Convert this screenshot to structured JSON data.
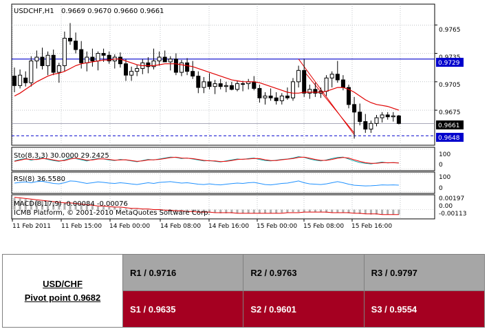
{
  "chart_data": [
    {
      "type": "candlestick",
      "title": "USDCHF,H1",
      "ohlc_label": "0.9669 0.9670 0.9660 0.9661",
      "watermark": "ICMB Platform, © 2001-2010 MetaQuotes Software Corp.",
      "ylim": [
        0.9638,
        0.9787
      ],
      "y_ticks": [
        "0.9765",
        "0.9735",
        "0.9705",
        "0.9675"
      ],
      "price_labels": {
        "upper": "0.9729",
        "current": "0.9661",
        "lower": "0.9648"
      },
      "time_labels": [
        "11 Feb 2011",
        "11 Feb 15:00",
        "14 Feb 00:00",
        "14 Feb 08:00",
        "14 Feb 16:00",
        "15 Feb 00:00",
        "15 Feb 08:00",
        "15 Feb 16:00"
      ],
      "candles": [
        {
          "o": 0.9711,
          "h": 0.972,
          "l": 0.9694,
          "c": 0.9701
        },
        {
          "o": 0.9701,
          "h": 0.9718,
          "l": 0.9698,
          "c": 0.9712
        },
        {
          "o": 0.9709,
          "h": 0.9716,
          "l": 0.97,
          "c": 0.9704
        },
        {
          "o": 0.9704,
          "h": 0.9732,
          "l": 0.97,
          "c": 0.9727
        },
        {
          "o": 0.9727,
          "h": 0.9738,
          "l": 0.9719,
          "c": 0.9731
        },
        {
          "o": 0.9731,
          "h": 0.9741,
          "l": 0.9718,
          "c": 0.9722
        },
        {
          "o": 0.9722,
          "h": 0.9737,
          "l": 0.9712,
          "c": 0.9733
        },
        {
          "o": 0.9733,
          "h": 0.9739,
          "l": 0.9712,
          "c": 0.9715
        },
        {
          "o": 0.9715,
          "h": 0.9725,
          "l": 0.9704,
          "c": 0.9722
        },
        {
          "o": 0.9722,
          "h": 0.9758,
          "l": 0.9716,
          "c": 0.9751
        },
        {
          "o": 0.9751,
          "h": 0.9767,
          "l": 0.9744,
          "c": 0.9748
        },
        {
          "o": 0.9748,
          "h": 0.9757,
          "l": 0.9735,
          "c": 0.9739
        },
        {
          "o": 0.9739,
          "h": 0.9748,
          "l": 0.9719,
          "c": 0.9725
        },
        {
          "o": 0.9725,
          "h": 0.9737,
          "l": 0.9716,
          "c": 0.9731
        },
        {
          "o": 0.9731,
          "h": 0.974,
          "l": 0.9721,
          "c": 0.9727
        },
        {
          "o": 0.9727,
          "h": 0.9737,
          "l": 0.9717,
          "c": 0.9735
        },
        {
          "o": 0.9735,
          "h": 0.974,
          "l": 0.9726,
          "c": 0.9733
        },
        {
          "o": 0.9733,
          "h": 0.9737,
          "l": 0.9724,
          "c": 0.9727
        },
        {
          "o": 0.9727,
          "h": 0.9734,
          "l": 0.9719,
          "c": 0.9731
        },
        {
          "o": 0.9731,
          "h": 0.9736,
          "l": 0.972,
          "c": 0.9724
        },
        {
          "o": 0.9724,
          "h": 0.9729,
          "l": 0.9706,
          "c": 0.9712
        },
        {
          "o": 0.9712,
          "h": 0.9721,
          "l": 0.9706,
          "c": 0.9716
        },
        {
          "o": 0.9716,
          "h": 0.9723,
          "l": 0.9711,
          "c": 0.9719
        },
        {
          "o": 0.9719,
          "h": 0.9729,
          "l": 0.9713,
          "c": 0.9725
        },
        {
          "o": 0.9725,
          "h": 0.9731,
          "l": 0.9714,
          "c": 0.9721
        },
        {
          "o": 0.9721,
          "h": 0.974,
          "l": 0.9718,
          "c": 0.9727
        },
        {
          "o": 0.9727,
          "h": 0.9737,
          "l": 0.9722,
          "c": 0.9731
        },
        {
          "o": 0.9731,
          "h": 0.9738,
          "l": 0.9726,
          "c": 0.9726
        },
        {
          "o": 0.9726,
          "h": 0.9732,
          "l": 0.9717,
          "c": 0.9729
        },
        {
          "o": 0.9729,
          "h": 0.9735,
          "l": 0.9712,
          "c": 0.9715
        },
        {
          "o": 0.9715,
          "h": 0.9728,
          "l": 0.9711,
          "c": 0.9725
        },
        {
          "o": 0.9725,
          "h": 0.973,
          "l": 0.9712,
          "c": 0.9716
        },
        {
          "o": 0.9716,
          "h": 0.9727,
          "l": 0.9708,
          "c": 0.9711
        },
        {
          "o": 0.9711,
          "h": 0.9716,
          "l": 0.9693,
          "c": 0.9699
        },
        {
          "o": 0.9699,
          "h": 0.971,
          "l": 0.9693,
          "c": 0.9705
        },
        {
          "o": 0.9705,
          "h": 0.9714,
          "l": 0.9697,
          "c": 0.97
        },
        {
          "o": 0.97,
          "h": 0.9707,
          "l": 0.9692,
          "c": 0.9703
        },
        {
          "o": 0.9703,
          "h": 0.9708,
          "l": 0.9697,
          "c": 0.97
        },
        {
          "o": 0.97,
          "h": 0.9705,
          "l": 0.9694,
          "c": 0.9701
        },
        {
          "o": 0.9701,
          "h": 0.9705,
          "l": 0.9696,
          "c": 0.9697
        },
        {
          "o": 0.9697,
          "h": 0.9706,
          "l": 0.9695,
          "c": 0.9703
        },
        {
          "o": 0.9703,
          "h": 0.9706,
          "l": 0.9695,
          "c": 0.9703
        },
        {
          "o": 0.9703,
          "h": 0.9708,
          "l": 0.9697,
          "c": 0.9705
        },
        {
          "o": 0.9705,
          "h": 0.9711,
          "l": 0.9696,
          "c": 0.9698
        },
        {
          "o": 0.9698,
          "h": 0.9702,
          "l": 0.9683,
          "c": 0.9688
        },
        {
          "o": 0.9688,
          "h": 0.9694,
          "l": 0.9681,
          "c": 0.969
        },
        {
          "o": 0.969,
          "h": 0.9698,
          "l": 0.9685,
          "c": 0.9688
        },
        {
          "o": 0.9688,
          "h": 0.9694,
          "l": 0.9681,
          "c": 0.9685
        },
        {
          "o": 0.9685,
          "h": 0.9693,
          "l": 0.9681,
          "c": 0.969
        },
        {
          "o": 0.969,
          "h": 0.9699,
          "l": 0.9686,
          "c": 0.9688
        },
        {
          "o": 0.9688,
          "h": 0.9709,
          "l": 0.9685,
          "c": 0.9705
        },
        {
          "o": 0.9705,
          "h": 0.9722,
          "l": 0.9699,
          "c": 0.9717
        },
        {
          "o": 0.9717,
          "h": 0.9729,
          "l": 0.9689,
          "c": 0.9693
        },
        {
          "o": 0.9693,
          "h": 0.9702,
          "l": 0.9687,
          "c": 0.9697
        },
        {
          "o": 0.9697,
          "h": 0.9704,
          "l": 0.9689,
          "c": 0.9693
        },
        {
          "o": 0.9693,
          "h": 0.9699,
          "l": 0.9688,
          "c": 0.9695
        },
        {
          "o": 0.9695,
          "h": 0.9712,
          "l": 0.969,
          "c": 0.9709
        },
        {
          "o": 0.9709,
          "h": 0.9716,
          "l": 0.9699,
          "c": 0.9713
        },
        {
          "o": 0.9713,
          "h": 0.9727,
          "l": 0.9704,
          "c": 0.9707
        },
        {
          "o": 0.9707,
          "h": 0.9712,
          "l": 0.9696,
          "c": 0.9699
        },
        {
          "o": 0.9699,
          "h": 0.9702,
          "l": 0.9677,
          "c": 0.9681
        },
        {
          "o": 0.9681,
          "h": 0.9689,
          "l": 0.9645,
          "c": 0.9673
        },
        {
          "o": 0.9673,
          "h": 0.9682,
          "l": 0.9659,
          "c": 0.9663
        },
        {
          "o": 0.9663,
          "h": 0.9671,
          "l": 0.9651,
          "c": 0.9655
        },
        {
          "o": 0.9655,
          "h": 0.9664,
          "l": 0.9651,
          "c": 0.9661
        },
        {
          "o": 0.9661,
          "h": 0.967,
          "l": 0.9658,
          "c": 0.9667
        },
        {
          "o": 0.9667,
          "h": 0.9673,
          "l": 0.9662,
          "c": 0.967
        },
        {
          "o": 0.967,
          "h": 0.9673,
          "l": 0.9665,
          "c": 0.9668
        },
        {
          "o": 0.9668,
          "h": 0.9673,
          "l": 0.9663,
          "c": 0.9669
        },
        {
          "o": 0.9669,
          "h": 0.967,
          "l": 0.966,
          "c": 0.9661
        }
      ],
      "moving_average": [
        0.969,
        0.9693,
        0.9697,
        0.9701,
        0.9705,
        0.9708,
        0.9711,
        0.9713,
        0.9714,
        0.9716,
        0.9719,
        0.9722,
        0.9724,
        0.9725,
        0.9726,
        0.9727,
        0.9728,
        0.9728,
        0.9729,
        0.9729,
        0.9727,
        0.9725,
        0.9723,
        0.9722,
        0.9722,
        0.9722,
        0.9723,
        0.9724,
        0.9724,
        0.9724,
        0.9723,
        0.9722,
        0.9721,
        0.9719,
        0.9717,
        0.9715,
        0.9713,
        0.9711,
        0.9709,
        0.9707,
        0.9706,
        0.9705,
        0.9705,
        0.9705,
        0.9704,
        0.9702,
        0.97,
        0.9698,
        0.9696,
        0.9694,
        0.9693,
        0.9693,
        0.9694,
        0.9694,
        0.9694,
        0.9694,
        0.9695,
        0.9697,
        0.9699,
        0.9699,
        0.9697,
        0.9694,
        0.969,
        0.9686,
        0.9683,
        0.9681,
        0.968,
        0.9679,
        0.9677,
        0.9675
      ],
      "levels": {
        "upper": 0.9729,
        "current": 0.9661,
        "lower": 0.9648
      },
      "trendlines": [
        {
          "from": [
            51,
            0.9729
          ],
          "to": [
            61,
            0.9649
          ]
        },
        {
          "from": [
            52,
            0.9716
          ],
          "to": [
            61,
            0.9651
          ]
        }
      ]
    },
    {
      "type": "line",
      "label": "Sto(8,3,3) 30.0000 29.2425",
      "ylim": [
        -10,
        110
      ],
      "y_ticks": [
        "100",
        "0"
      ],
      "series": [
        {
          "color": "#00a0a0",
          "values": [
            40,
            48,
            52,
            44,
            50,
            55,
            48,
            42,
            38,
            45,
            55,
            52,
            46,
            40,
            48,
            52,
            50,
            45,
            42,
            48,
            45,
            40,
            36,
            42,
            48,
            45,
            50,
            55,
            60,
            58,
            52,
            55,
            50,
            45,
            40,
            42,
            38,
            35,
            40,
            45,
            50,
            48,
            52,
            55,
            48,
            42,
            40,
            44,
            48,
            50,
            55,
            62,
            58,
            50,
            44,
            40,
            45,
            52,
            58,
            60,
            50,
            40,
            32,
            28,
            25,
            30,
            34,
            30,
            32,
            30
          ]
        },
        {
          "color": "#ff0000",
          "values": [
            38,
            44,
            50,
            48,
            47,
            52,
            51,
            45,
            40,
            42,
            50,
            54,
            50,
            44,
            45,
            50,
            51,
            48,
            44,
            45,
            46,
            42,
            38,
            40,
            45,
            46,
            48,
            52,
            57,
            59,
            55,
            54,
            52,
            48,
            43,
            41,
            40,
            37,
            38,
            42,
            47,
            49,
            50,
            53,
            52,
            46,
            42,
            42,
            46,
            49,
            52,
            58,
            60,
            54,
            48,
            43,
            43,
            48,
            54,
            58,
            55,
            46,
            38,
            31,
            28,
            28,
            31,
            31,
            31,
            29
          ]
        }
      ]
    },
    {
      "type": "line",
      "label": "RSI(8) 36.5580",
      "ylim": [
        -10,
        110
      ],
      "y_ticks": [
        "100",
        "0"
      ],
      "series": [
        {
          "color": "#1e90ff",
          "values": [
            48,
            52,
            55,
            50,
            56,
            58,
            52,
            46,
            44,
            50,
            60,
            58,
            52,
            46,
            50,
            55,
            52,
            48,
            46,
            50,
            47,
            43,
            40,
            45,
            50,
            46,
            52,
            54,
            56,
            52,
            48,
            50,
            46,
            42,
            40,
            44,
            40,
            38,
            42,
            45,
            48,
            46,
            50,
            52,
            46,
            40,
            38,
            42,
            46,
            48,
            54,
            60,
            50,
            44,
            42,
            40,
            44,
            50,
            56,
            50,
            42,
            36,
            34,
            32,
            33,
            35,
            38,
            37,
            38,
            36.5
          ]
        }
      ]
    },
    {
      "type": "bar",
      "label": "MACD(8,17,9) -0.00084 -0.00076",
      "ylim": [
        -0.0015,
        0.0024
      ],
      "y_ticks": [
        "0.00197",
        "0.00",
        "-0.00113"
      ],
      "bars": [
        0.0019,
        0.0018,
        0.0017,
        0.0016,
        0.0015,
        0.0014,
        0.0013,
        0.0012,
        0.0011,
        0.001,
        0.001,
        0.0009,
        0.0008,
        0.0007,
        0.0006,
        0.0005,
        0.0005,
        0.0004,
        0.0004,
        0.0003,
        0.0002,
        0.0002,
        0.0001,
        0.0001,
        0.0,
        0.0,
        -0.0001,
        -0.0001,
        -0.0002,
        -0.0002,
        -0.0003,
        -0.0003,
        -0.0004,
        -0.0004,
        -0.0005,
        -0.0005,
        -0.0005,
        -0.0006,
        -0.0006,
        -0.0006,
        -0.0006,
        -0.0006,
        -0.0006,
        -0.0006,
        -0.0006,
        -0.0006,
        -0.0006,
        -0.0006,
        -0.0005,
        -0.0005,
        -0.0004,
        -0.0004,
        -0.0004,
        -0.0004,
        -0.0004,
        -0.0004,
        -0.0005,
        -0.0005,
        -0.0005,
        -0.0005,
        -0.0006,
        -0.0006,
        -0.0007,
        -0.0007,
        -0.0008,
        -0.0008,
        -0.0008,
        -0.0008,
        -0.0008,
        -0.0008
      ],
      "signal": [
        0.002,
        0.0019,
        0.0018,
        0.0017,
        0.0016,
        0.0015,
        0.0014,
        0.0013,
        0.0012,
        0.0011,
        0.0011,
        0.001,
        0.0009,
        0.0008,
        0.0007,
        0.0006,
        0.0006,
        0.0005,
        0.0004,
        0.0004,
        0.0003,
        0.0002,
        0.0002,
        0.0001,
        0.0001,
        0.0,
        0.0,
        -0.0001,
        -0.0001,
        -0.0002,
        -0.0002,
        -0.0003,
        -0.0003,
        -0.0004,
        -0.0004,
        -0.0004,
        -0.0005,
        -0.0005,
        -0.0005,
        -0.0005,
        -0.0006,
        -0.0006,
        -0.0006,
        -0.0006,
        -0.0006,
        -0.0006,
        -0.0006,
        -0.0006,
        -0.0006,
        -0.0005,
        -0.0005,
        -0.0005,
        -0.0004,
        -0.0004,
        -0.0004,
        -0.0004,
        -0.0004,
        -0.0005,
        -0.0005,
        -0.0005,
        -0.0005,
        -0.0006,
        -0.0006,
        -0.0007,
        -0.0007,
        -0.0007,
        -0.0008,
        -0.0008,
        -0.0008,
        -0.0008
      ]
    }
  ],
  "pivot_table": {
    "pair": "USD/CHF",
    "pivot": "Pivot point 0.9682",
    "r1": "R1 / 0.9716",
    "r2": "R2 / 0.9763",
    "r3": "R3 / 0.9797",
    "s1": "S1 / 0.9635",
    "s2": "S2 / 0.9601",
    "s3": "S3 / 0.9554"
  },
  "colors": {
    "resistance_bg": "#a6a6a6",
    "support_bg": "#a50021",
    "moving_average": "#e00000",
    "level_line": "#0000cc",
    "label_box": "#0000cc"
  }
}
